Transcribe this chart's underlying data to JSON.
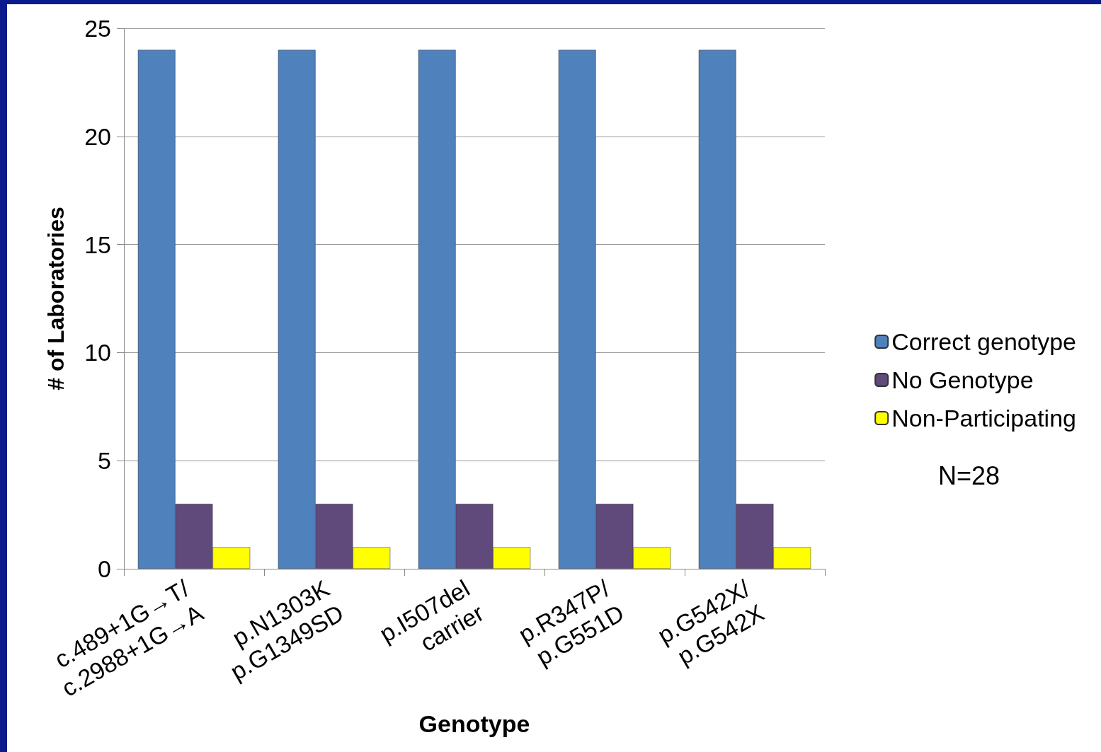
{
  "chart_data": {
    "type": "bar",
    "xlabel": "Genotype",
    "ylabel": "# of Laboratories",
    "categories": [
      "c.489+1G→T/\nc.2988+1G→A",
      "p.N1303K\np.G1349SD",
      "p.I507del\ncarrier",
      "p.R347P/\np.G551D",
      "p.G542X/\np.G542X"
    ],
    "series": [
      {
        "name": "Correct genotype",
        "color": "#4f81bd",
        "values": [
          24,
          24,
          24,
          24,
          24
        ]
      },
      {
        "name": "No Genotype",
        "color": "#604a7b",
        "values": [
          3,
          3,
          3,
          3,
          3
        ]
      },
      {
        "name": "Non-Participating",
        "color": "#ffff00",
        "values": [
          1,
          1,
          1,
          1,
          1
        ]
      }
    ],
    "ylim": [
      0,
      25
    ],
    "yticks": [
      0,
      5,
      10,
      15,
      20,
      25
    ],
    "grid": "y",
    "legend": "right",
    "annotations": [
      "N=28"
    ]
  }
}
